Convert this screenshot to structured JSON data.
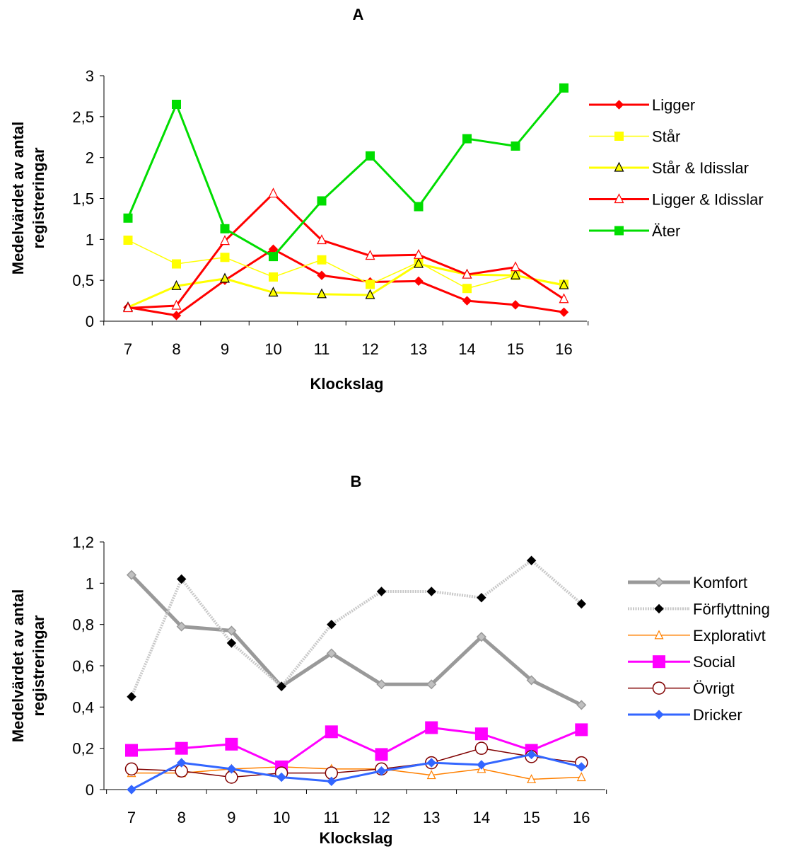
{
  "chart_data": [
    {
      "type": "line",
      "title": "A",
      "xlabel": "Klockslag",
      "ylabel": [
        "Medelvärdet av antal",
        "registreringar"
      ],
      "categories": [
        "7",
        "8",
        "9",
        "10",
        "11",
        "12",
        "13",
        "14",
        "15",
        "16"
      ],
      "ylim": [
        0,
        3
      ],
      "yticks": [
        "0",
        "0,5",
        "1",
        "1,5",
        "2",
        "2,5",
        "3"
      ],
      "grid": false,
      "legend_position": "right",
      "series": [
        {
          "name": "Ligger",
          "color": "#ff0000",
          "marker": "diamond",
          "line_width": 3,
          "values": [
            0.17,
            0.07,
            0.5,
            0.88,
            0.56,
            0.48,
            0.49,
            0.25,
            0.2,
            0.11
          ]
        },
        {
          "name": "Står",
          "color": "#ffff00",
          "marker": "square",
          "line_width": 1.5,
          "values": [
            0.99,
            0.7,
            0.78,
            0.54,
            0.75,
            0.45,
            0.72,
            0.4,
            0.56,
            0.45
          ]
        },
        {
          "name": "Står & Idisslar",
          "color": "#ffff00",
          "marker": "triangle-black",
          "line_width": 3,
          "values": [
            0.17,
            0.43,
            0.52,
            0.35,
            0.33,
            0.32,
            0.7,
            0.57,
            0.56,
            0.44
          ]
        },
        {
          "name": "Ligger & Idisslar",
          "color": "#ff0000",
          "marker": "triangle-red",
          "line_width": 3,
          "values": [
            0.16,
            0.19,
            0.98,
            1.56,
            0.99,
            0.8,
            0.81,
            0.57,
            0.66,
            0.27
          ]
        },
        {
          "name": "Äter",
          "color": "#00dd00",
          "marker": "square",
          "line_width": 3,
          "values": [
            1.26,
            2.65,
            1.13,
            0.79,
            1.47,
            2.02,
            1.4,
            2.23,
            2.14,
            2.85
          ]
        }
      ]
    },
    {
      "type": "line",
      "title": "B",
      "xlabel": "Klockslag",
      "ylabel": [
        "Medelvärdet av antal",
        "registreringar"
      ],
      "categories": [
        "7",
        "8",
        "9",
        "10",
        "11",
        "12",
        "13",
        "14",
        "15",
        "16"
      ],
      "ylim": [
        0,
        1.2
      ],
      "yticks": [
        "0",
        "0,2",
        "0,4",
        "0,6",
        "0,8",
        "1",
        "1,2"
      ],
      "grid": false,
      "legend_position": "right",
      "series": [
        {
          "name": "Komfort",
          "color": "#999999",
          "marker": "diamond-gray",
          "line_width": 5,
          "values": [
            1.04,
            0.79,
            0.77,
            0.5,
            0.66,
            0.51,
            0.51,
            0.74,
            0.53,
            0.41
          ]
        },
        {
          "name": "Förflyttning",
          "color": "#c8c8c8",
          "marker": "diamond-black",
          "line_width": 4,
          "values": [
            0.45,
            1.02,
            0.71,
            0.5,
            0.8,
            0.96,
            0.96,
            0.93,
            1.11,
            0.9
          ]
        },
        {
          "name": "Explorativt",
          "color": "#ff8000",
          "marker": "triangle-orange",
          "line_width": 1.5,
          "values": [
            0.08,
            0.08,
            0.1,
            0.11,
            0.1,
            0.1,
            0.07,
            0.1,
            0.05,
            0.06
          ]
        },
        {
          "name": "Social",
          "color": "#ff00ff",
          "marker": "square-big",
          "line_width": 3,
          "values": [
            0.19,
            0.2,
            0.22,
            0.11,
            0.28,
            0.17,
            0.3,
            0.27,
            0.19,
            0.29
          ]
        },
        {
          "name": "Övrigt",
          "color": "#800000",
          "marker": "circle-open",
          "line_width": 1.5,
          "values": [
            0.1,
            0.09,
            0.06,
            0.08,
            0.08,
            0.1,
            0.13,
            0.2,
            0.16,
            0.13
          ]
        },
        {
          "name": "Dricker",
          "color": "#3366ff",
          "marker": "diamond-blue",
          "line_width": 3,
          "values": [
            0.0,
            0.13,
            0.1,
            0.06,
            0.04,
            0.09,
            0.13,
            0.12,
            0.17,
            0.11
          ]
        }
      ]
    }
  ]
}
